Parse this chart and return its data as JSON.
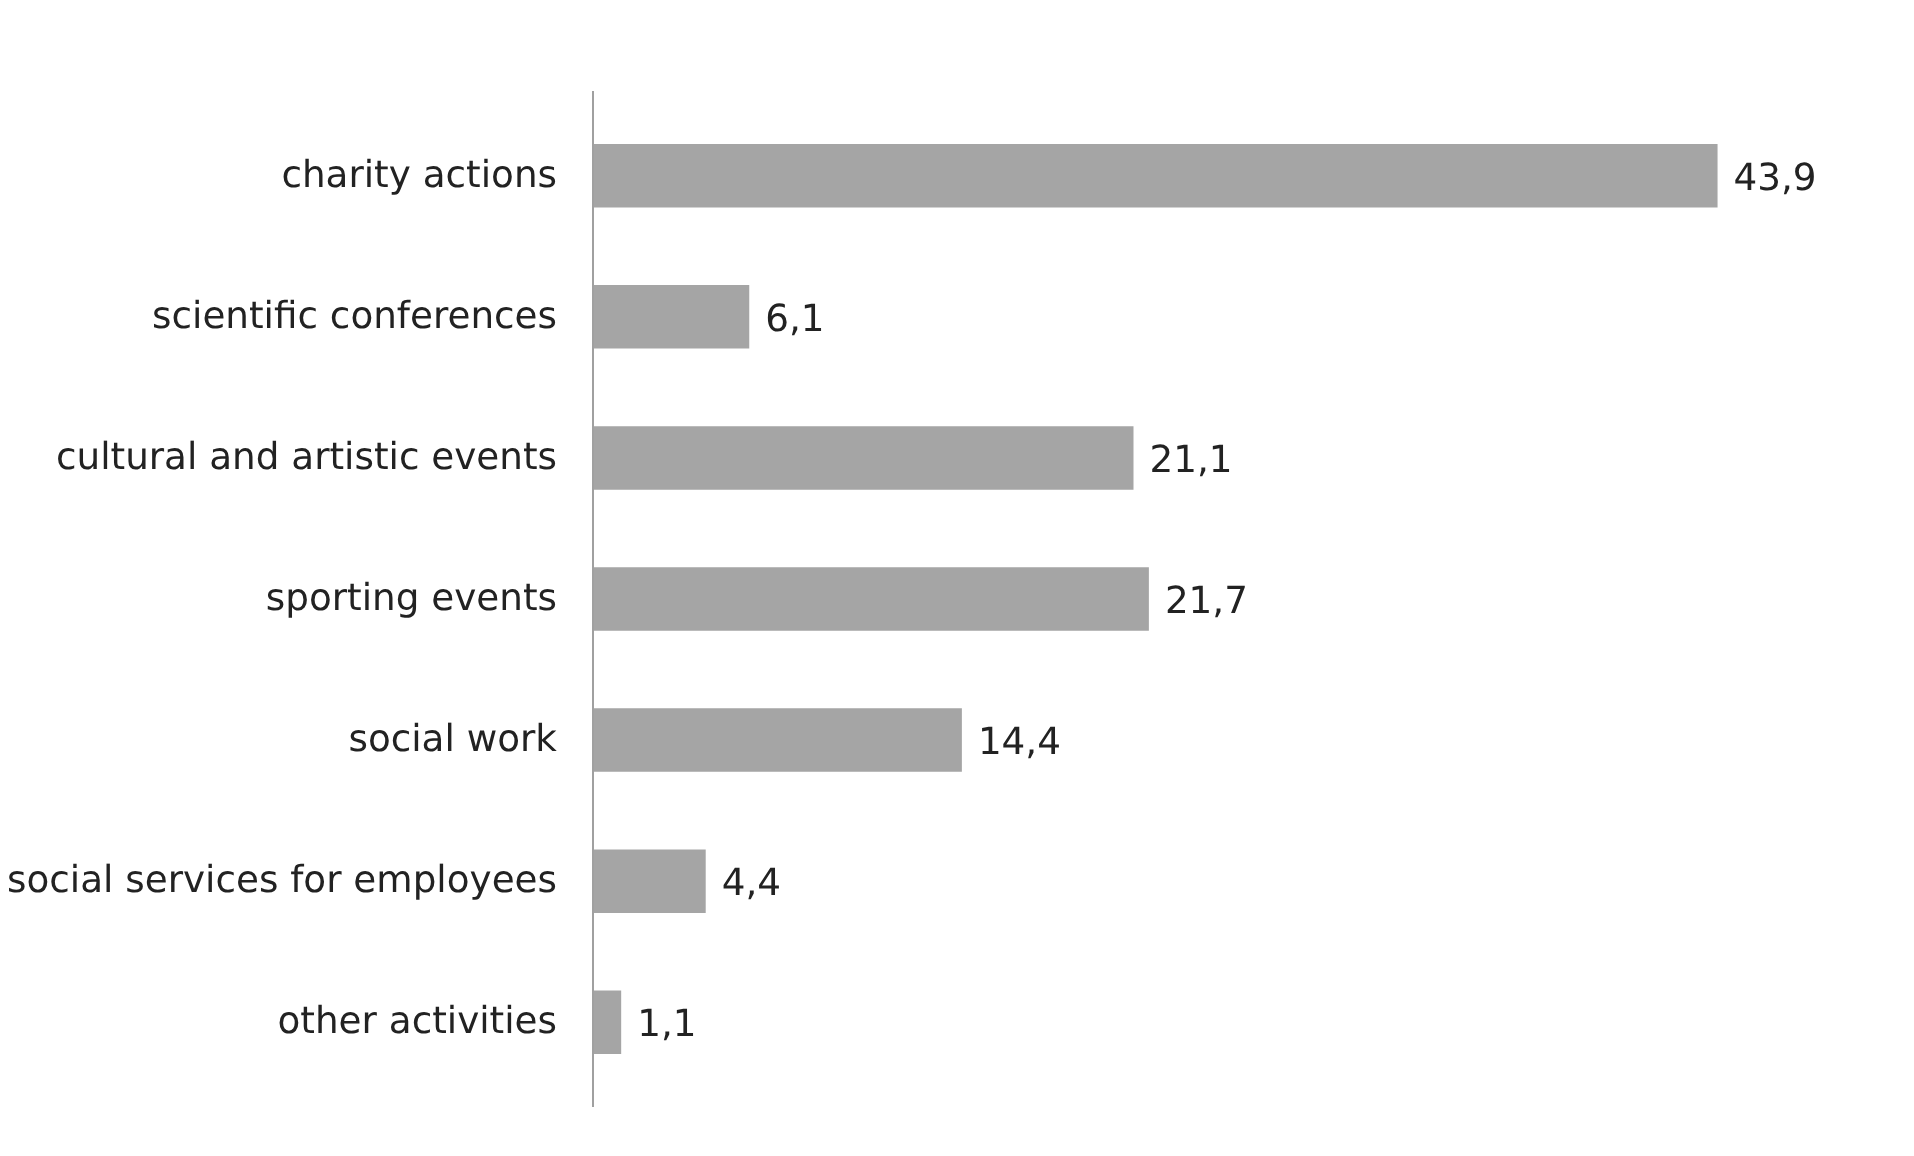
{
  "chart_data": {
    "type": "bar",
    "orientation": "horizontal",
    "categories": [
      "charity actions",
      "scientific conferences",
      "cultural and artistic events",
      "sporting events",
      "social work",
      "social services for employees",
      "other activities"
    ],
    "values": [
      43.9,
      6.1,
      21.1,
      21.7,
      14.4,
      4.4,
      1.1
    ],
    "value_labels": [
      "43,9",
      "6,1",
      "21,1",
      "21,7",
      "14,4",
      "4,4",
      "1,1"
    ],
    "color": "#a5a5a5",
    "grid": false
  }
}
